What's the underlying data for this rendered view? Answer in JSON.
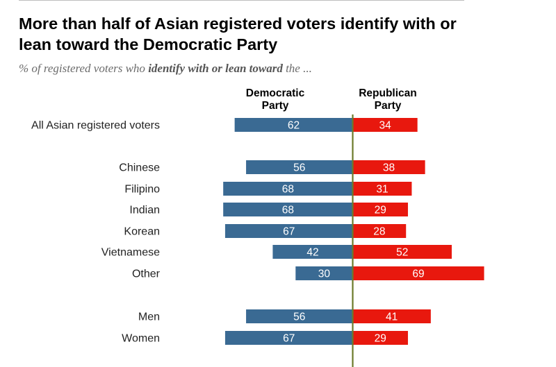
{
  "title": "More than half of Asian registered voters identify with or lean toward the Democratic Party",
  "subtitle_prefix": "% of registered voters who ",
  "subtitle_emphasis": "identify with or lean toward",
  "subtitle_suffix": " the ...",
  "colors": {
    "democratic": "#3a6a93",
    "republican": "#e8180e",
    "axis": "#6b7a2a"
  },
  "chart_data": {
    "type": "bar",
    "orientation": "horizontal-diverging",
    "title": "More than half of Asian registered voters identify with or lean toward the Democratic Party",
    "categories": [
      "All Asian registered voters",
      "Chinese",
      "Filipino",
      "Indian",
      "Korean",
      "Vietnamese",
      "Other",
      "Men",
      "Women"
    ],
    "groups": [
      [
        "All Asian registered voters"
      ],
      [
        "Chinese",
        "Filipino",
        "Indian",
        "Korean",
        "Vietnamese",
        "Other"
      ],
      [
        "Men",
        "Women"
      ]
    ],
    "series": [
      {
        "name": "Democratic Party",
        "header_lines": [
          "Democratic",
          "Party"
        ],
        "values": [
          62,
          56,
          68,
          68,
          67,
          42,
          30,
          56,
          67
        ]
      },
      {
        "name": "Republican Party",
        "header_lines": [
          "Republican",
          "Party"
        ],
        "values": [
          34,
          38,
          31,
          29,
          28,
          52,
          69,
          41,
          29
        ]
      }
    ],
    "units": "% of registered voters"
  }
}
